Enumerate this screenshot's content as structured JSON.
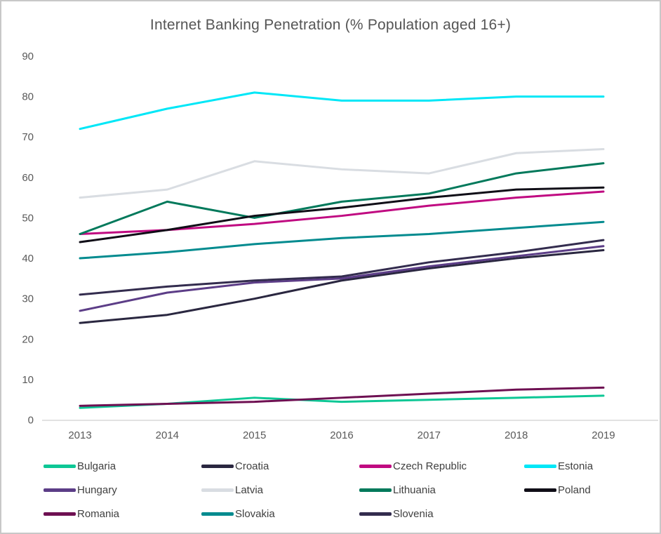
{
  "window": {
    "background": "#ffffff",
    "border_color": "#c8c8c8"
  },
  "chart_data": {
    "type": "line",
    "title": "Internet Banking Penetration (% Population aged 16+)",
    "xlabel": "",
    "ylabel": "",
    "x_labels": [
      "2013",
      "2014",
      "2015",
      "2016",
      "2017",
      "2018",
      "2019"
    ],
    "y_ticks": [
      0,
      10,
      20,
      30,
      40,
      50,
      60,
      70,
      80,
      90
    ],
    "ylim": [
      0,
      90
    ],
    "grid": false,
    "legend_position": "bottom",
    "axis_color": "#d9d9d9",
    "tick_color": "#595959",
    "series": [
      {
        "name": "Bulgaria",
        "color": "#0dc795",
        "values": [
          3,
          4,
          5.5,
          4.5,
          5,
          5.5,
          6
        ]
      },
      {
        "name": "Croatia",
        "color": "#2a2740",
        "values": [
          24,
          26,
          30,
          34.5,
          37.5,
          40,
          42
        ]
      },
      {
        "name": "Czech Republic",
        "color": "#c00a81",
        "values": [
          46,
          47,
          48.5,
          50.5,
          53,
          55,
          56.5
        ]
      },
      {
        "name": "Estonia",
        "color": "#00e7f7",
        "values": [
          72,
          77,
          81,
          79,
          79,
          80,
          80
        ]
      },
      {
        "name": "Hungary",
        "color": "#5c3d87",
        "values": [
          27,
          31.5,
          34,
          35,
          38,
          40.5,
          43
        ]
      },
      {
        "name": "Latvia",
        "color": "#d9dde2",
        "values": [
          55,
          57,
          64,
          62,
          61,
          66,
          67
        ]
      },
      {
        "name": "Lithuania",
        "color": "#01795b",
        "values": [
          46,
          54,
          50,
          54,
          56,
          61,
          63.5
        ]
      },
      {
        "name": "Poland",
        "color": "#100e17",
        "values": [
          44,
          47,
          50.5,
          52.5,
          55,
          57,
          57.5
        ]
      },
      {
        "name": "Romania",
        "color": "#6e1052",
        "values": [
          3.5,
          4,
          4.5,
          5.5,
          6.5,
          7.5,
          8
        ]
      },
      {
        "name": "Slovakia",
        "color": "#038b8f",
        "values": [
          40,
          41.5,
          43.5,
          45,
          46,
          47.5,
          49
        ]
      },
      {
        "name": "Slovenia",
        "color": "#332c4e",
        "values": [
          31,
          33,
          34.5,
          35.5,
          39,
          41.5,
          44.5
        ]
      }
    ]
  }
}
